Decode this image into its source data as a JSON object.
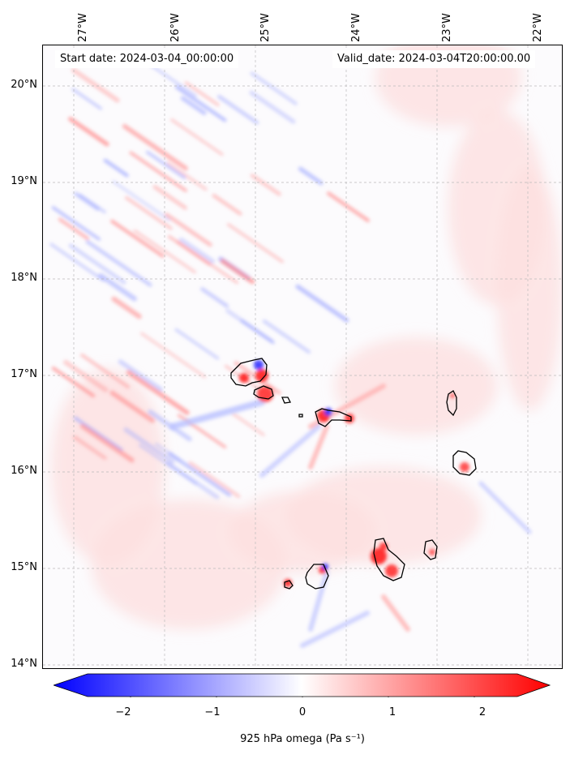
{
  "header": {
    "start_date": "Start date: 2024-03-04_00:00:00",
    "valid_date": "Valid_date: 2024-03-04T20:00:00.00"
  },
  "axes": {
    "lon_labels": [
      "27°W",
      "26°W",
      "25°W",
      "24°W",
      "23°W",
      "22°W"
    ],
    "lat_labels": [
      "20°N",
      "19°N",
      "18°N",
      "17°N",
      "16°N",
      "15°N",
      "14°N"
    ],
    "gridlines": true
  },
  "colorbar": {
    "label": "925 hPa omega (Pa s⁻¹)",
    "ticks": [
      "−2",
      "−1",
      "0",
      "1",
      "2"
    ],
    "colormap": "bwr",
    "range": [
      -2.5,
      2.5
    ],
    "extend": "both",
    "negative_color": "#0000ff",
    "positive_color": "#ff0000"
  },
  "map": {
    "field": "925 hPa omega",
    "coastline_color": "#000000"
  }
}
